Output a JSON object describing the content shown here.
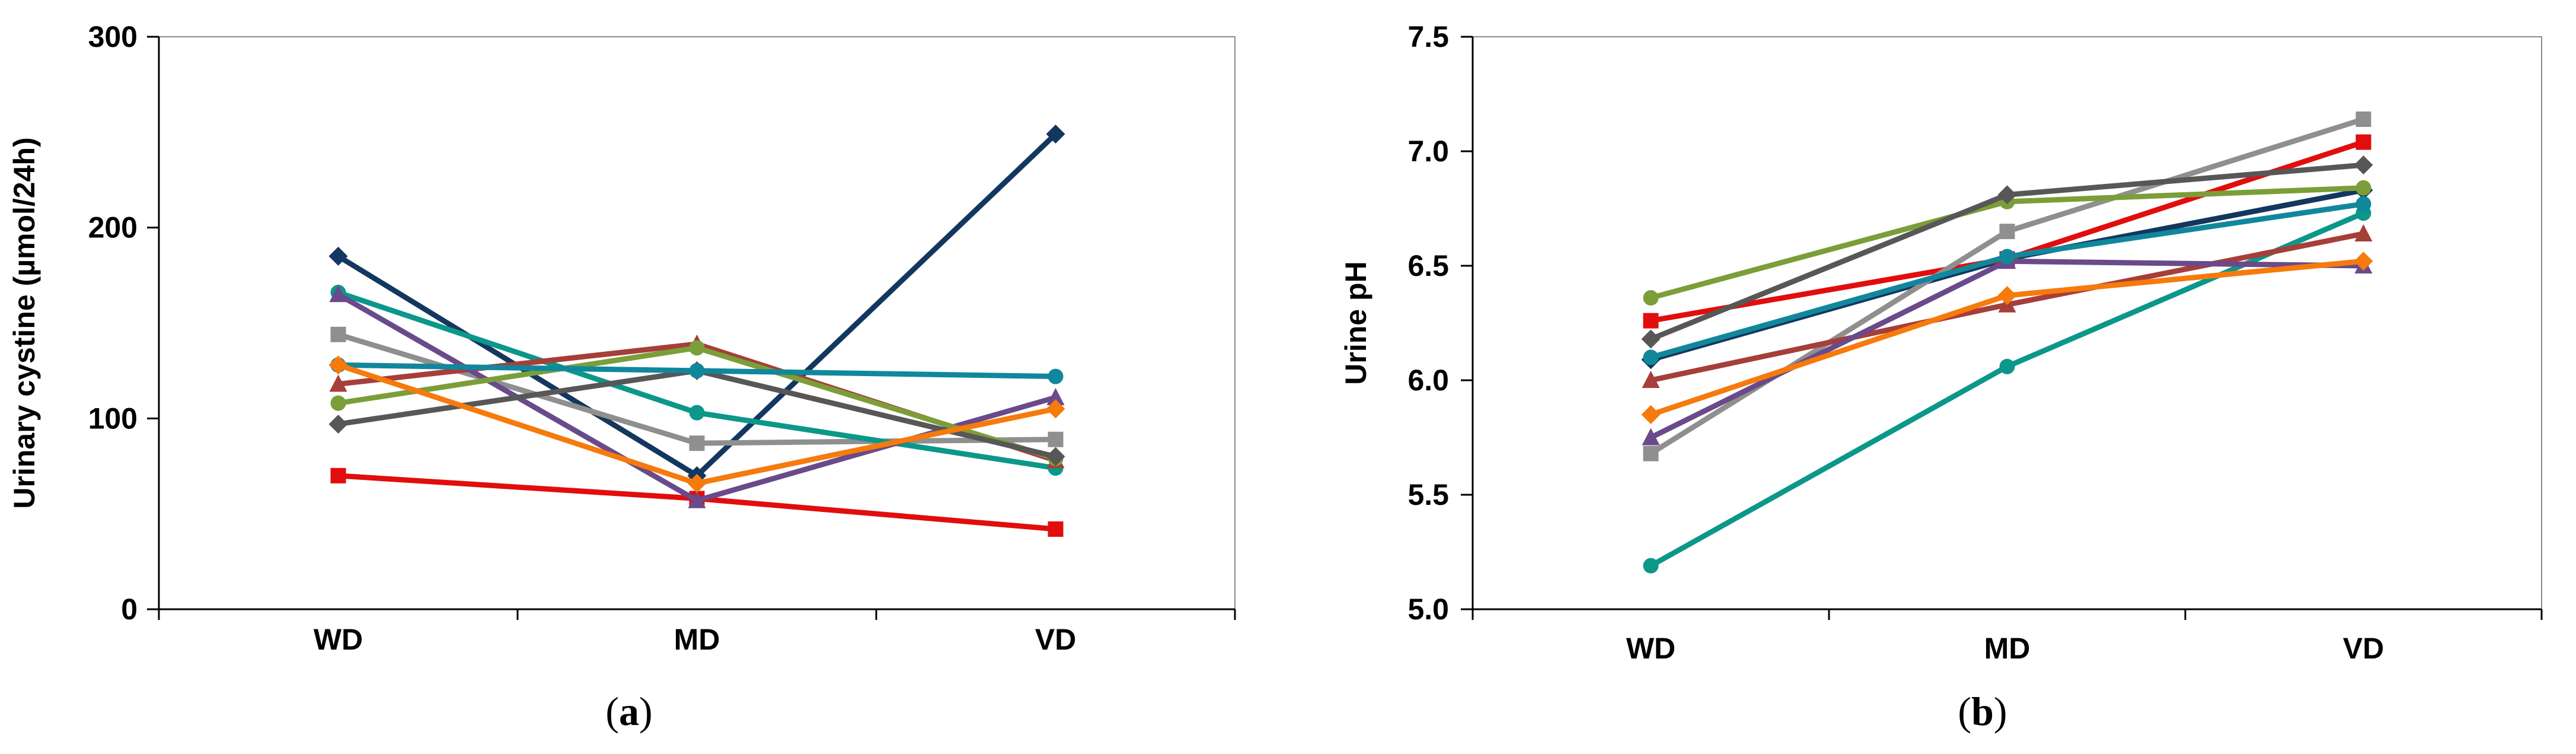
{
  "chart_data": [
    {
      "type": "line",
      "panel_label": "(a)",
      "caption_open": "(",
      "caption_letter": "a",
      "caption_close": ")",
      "title": "",
      "xlabel": "",
      "ylabel": "Urinary cystine (µmol/24h)",
      "categories": [
        "WD",
        "MD",
        "VD"
      ],
      "ylim": [
        0,
        300
      ],
      "yticks": [
        0,
        100,
        200,
        300
      ],
      "grid": false,
      "legend": "none",
      "series": [
        {
          "name": "Series 1",
          "color": "#13375e",
          "marker": "diamond",
          "values": [
            185,
            70,
            249
          ]
        },
        {
          "name": "Series 2",
          "color": "#e20d0d",
          "marker": "square",
          "values": [
            70,
            58,
            42
          ]
        },
        {
          "name": "Series 3",
          "color": "#8f8f8f",
          "marker": "square",
          "values": [
            144,
            87,
            89
          ]
        },
        {
          "name": "Series 4",
          "color": "#0b978a",
          "marker": "circle",
          "values": [
            166,
            103,
            74
          ]
        },
        {
          "name": "Series 5",
          "color": "#a63e3a",
          "marker": "triangle",
          "values": [
            118,
            139,
            78
          ]
        },
        {
          "name": "Series 6",
          "color": "#6a4a8a",
          "marker": "triangle",
          "values": [
            165,
            57,
            111
          ]
        },
        {
          "name": "Series 7",
          "color": "#7b9e39",
          "marker": "circle",
          "values": [
            108,
            137,
            79
          ]
        },
        {
          "name": "Series 8",
          "color": "#575757",
          "marker": "diamond",
          "values": [
            97,
            125,
            80
          ]
        },
        {
          "name": "Series 9",
          "color": "#11879c",
          "marker": "circle",
          "values": [
            128,
            125,
            122
          ]
        },
        {
          "name": "Series 10",
          "color": "#f67a0c",
          "marker": "diamond",
          "values": [
            128,
            66,
            105
          ]
        }
      ]
    },
    {
      "type": "line",
      "panel_label": "(b)",
      "caption_open": "(",
      "caption_letter": "b",
      "caption_close": ")",
      "title": "",
      "xlabel": "",
      "ylabel": "Urine pH",
      "categories": [
        "WD",
        "MD",
        "VD"
      ],
      "ylim": [
        5.0,
        7.5
      ],
      "yticks": [
        "5.0",
        "5.5",
        "6.0",
        "6.5",
        "7.0",
        "7.5"
      ],
      "grid": false,
      "legend": "none",
      "series": [
        {
          "name": "Series 1",
          "color": "#13375e",
          "marker": "diamond",
          "values": [
            6.09,
            6.53,
            6.83
          ]
        },
        {
          "name": "Series 2",
          "color": "#e20d0d",
          "marker": "square",
          "values": [
            6.26,
            6.53,
            7.04
          ]
        },
        {
          "name": "Series 3",
          "color": "#8f8f8f",
          "marker": "square",
          "values": [
            5.68,
            6.65,
            7.14
          ]
        },
        {
          "name": "Series 4",
          "color": "#0b978a",
          "marker": "circle",
          "values": [
            5.19,
            6.06,
            6.73
          ]
        },
        {
          "name": "Series 5",
          "color": "#a63e3a",
          "marker": "triangle",
          "values": [
            6.0,
            6.33,
            6.64
          ]
        },
        {
          "name": "Series 6",
          "color": "#6a4a8a",
          "marker": "triangle",
          "values": [
            5.75,
            6.52,
            6.5
          ]
        },
        {
          "name": "Series 7",
          "color": "#7b9e39",
          "marker": "circle",
          "values": [
            6.36,
            6.78,
            6.84
          ]
        },
        {
          "name": "Series 8",
          "color": "#575757",
          "marker": "diamond",
          "values": [
            6.18,
            6.81,
            6.94
          ]
        },
        {
          "name": "Series 9",
          "color": "#11879c",
          "marker": "circle",
          "values": [
            6.1,
            6.54,
            6.77
          ]
        },
        {
          "name": "Series 10",
          "color": "#f67a0c",
          "marker": "diamond",
          "values": [
            5.85,
            6.37,
            6.52
          ]
        }
      ]
    }
  ]
}
